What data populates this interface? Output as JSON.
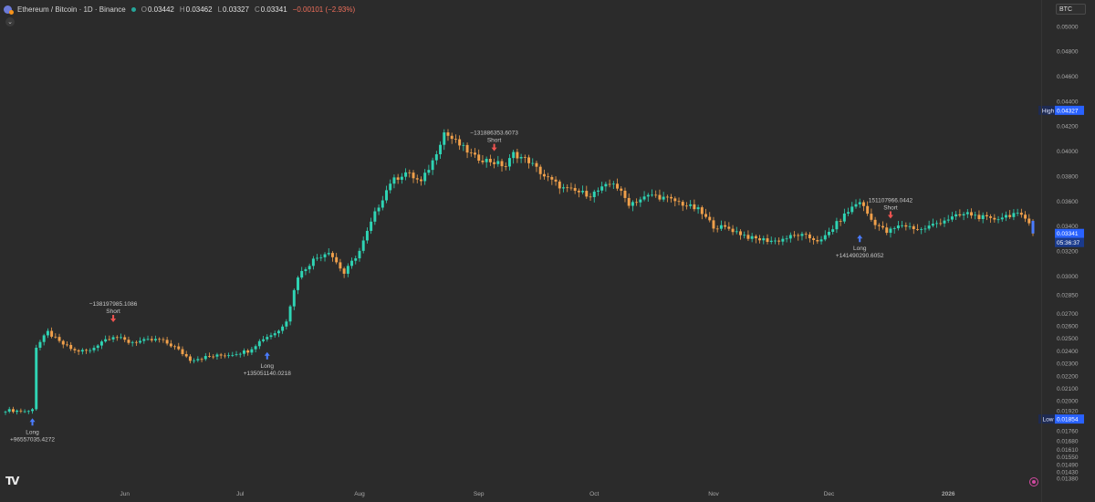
{
  "header": {
    "title": "Ethereum / Bitcoin · 1D · Binance",
    "o_label": "O",
    "o": "0.03442",
    "h_label": "H",
    "h": "0.03462",
    "l_label": "L",
    "l": "0.03327",
    "c_label": "C",
    "c": "0.03341",
    "change": "−0.00101 (−2.93%)"
  },
  "currency_select": "BTC",
  "colors": {
    "up": "#2fd4b4",
    "down": "#f0a04b",
    "long": "#4a7cff",
    "short": "#ef5350",
    "label_bg": "#2962ff"
  },
  "chart_data": {
    "type": "candlestick",
    "ylim": [
      0.0135,
      0.0505
    ],
    "y_ticks": [
      "0.05000",
      "0.04800",
      "0.04600",
      "0.04400",
      "0.04200",
      "0.04000",
      "0.03800",
      "0.03600",
      "0.03400",
      "0.03200",
      "0.03000",
      "0.02850",
      "0.02700",
      "0.02600",
      "0.02500",
      "0.02400",
      "0.02300",
      "0.02200",
      "0.02100",
      "0.02000",
      "0.01920",
      "0.01840",
      "0.01760",
      "0.01680",
      "0.01610",
      "0.01550",
      "0.01490",
      "0.01430",
      "0.01380"
    ],
    "x_ticks": [
      {
        "label": "Jun",
        "day": 31
      },
      {
        "label": "Jul",
        "day": 61
      },
      {
        "label": "Aug",
        "day": 92
      },
      {
        "label": "Sep",
        "day": 123
      },
      {
        "label": "Oct",
        "day": 153
      },
      {
        "label": "Nov",
        "day": 184
      },
      {
        "label": "Dec",
        "day": 214
      },
      {
        "label": "2026",
        "day": 245
      }
    ],
    "day_count": 268,
    "waypoints": [
      [
        0,
        0.01925
      ],
      [
        6,
        0.01915
      ],
      [
        7,
        0.0194
      ],
      [
        8,
        0.0243
      ],
      [
        11,
        0.0255
      ],
      [
        14,
        0.0247
      ],
      [
        18,
        0.024
      ],
      [
        22,
        0.024
      ],
      [
        25,
        0.0248
      ],
      [
        28,
        0.0252
      ],
      [
        32,
        0.0247
      ],
      [
        40,
        0.0249
      ],
      [
        44,
        0.0243
      ],
      [
        48,
        0.0233
      ],
      [
        52,
        0.0235
      ],
      [
        58,
        0.0237
      ],
      [
        63,
        0.024
      ],
      [
        67,
        0.025
      ],
      [
        71,
        0.0256
      ],
      [
        73,
        0.0265
      ],
      [
        76,
        0.03
      ],
      [
        80,
        0.0313
      ],
      [
        84,
        0.032
      ],
      [
        88,
        0.0302
      ],
      [
        92,
        0.032
      ],
      [
        96,
        0.035
      ],
      [
        100,
        0.0375
      ],
      [
        104,
        0.0383
      ],
      [
        108,
        0.0375
      ],
      [
        111,
        0.0392
      ],
      [
        114,
        0.0415
      ],
      [
        118,
        0.0405
      ],
      [
        122,
        0.0395
      ],
      [
        126,
        0.0392
      ],
      [
        130,
        0.0388
      ],
      [
        132,
        0.0398
      ],
      [
        136,
        0.0392
      ],
      [
        140,
        0.038
      ],
      [
        145,
        0.037
      ],
      [
        152,
        0.0365
      ],
      [
        158,
        0.0375
      ],
      [
        162,
        0.0358
      ],
      [
        168,
        0.0365
      ],
      [
        174,
        0.036
      ],
      [
        180,
        0.0353
      ],
      [
        184,
        0.034
      ],
      [
        188,
        0.0338
      ],
      [
        194,
        0.033
      ],
      [
        200,
        0.0328
      ],
      [
        206,
        0.0333
      ],
      [
        212,
        0.0328
      ],
      [
        216,
        0.0342
      ],
      [
        220,
        0.0355
      ],
      [
        222,
        0.036
      ],
      [
        225,
        0.0345
      ],
      [
        229,
        0.0335
      ],
      [
        233,
        0.0341
      ],
      [
        238,
        0.0337
      ],
      [
        244,
        0.0345
      ],
      [
        250,
        0.035
      ],
      [
        256,
        0.0345
      ],
      [
        262,
        0.035
      ],
      [
        265,
        0.0346
      ],
      [
        266,
        0.03442
      ],
      [
        267,
        0.03341
      ]
    ],
    "signals": [
      {
        "type": "Long",
        "day": 7,
        "price": 0.0186,
        "amount": "+96557035.4272"
      },
      {
        "type": "Short",
        "day": 28,
        "price": 0.0263,
        "amount": "−138197985.1086"
      },
      {
        "type": "Long",
        "day": 68,
        "price": 0.0239,
        "amount": "+135051140.0218"
      },
      {
        "type": "Short",
        "day": 127,
        "price": 0.04,
        "amount": "−131886353.6073"
      },
      {
        "type": "Long",
        "day": 222,
        "price": 0.0333,
        "amount": "+141490290.6052"
      },
      {
        "type": "Short",
        "day": 230,
        "price": 0.0346,
        "amount": "151107966.0442"
      }
    ],
    "price_labels": {
      "high_label": "High",
      "high_value": "0.04327",
      "last_value": "0.03341",
      "countdown": "05:36:37",
      "low_label": "Low",
      "low_value": "0.01854"
    },
    "high": 0.04327,
    "low": 0.01854,
    "last": 0.03341
  }
}
